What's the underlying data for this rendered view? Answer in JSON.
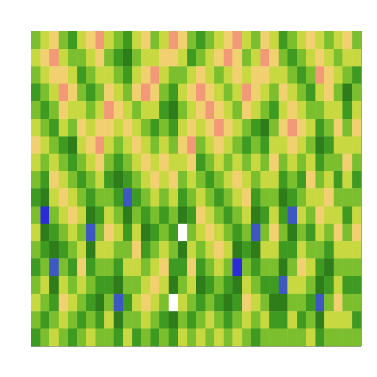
{
  "chart_data": {
    "type": "heatmap",
    "tick_labels": false,
    "grid": false,
    "cells": [
      [
        5,
        6,
        7,
        5,
        4,
        6,
        7,
        8,
        6,
        5,
        4,
        6,
        7,
        5,
        6,
        8,
        7,
        5,
        4,
        5,
        6,
        7,
        8,
        6,
        5,
        7,
        6,
        4,
        5,
        6,
        7,
        6,
        5,
        6,
        7,
        5
      ],
      [
        6,
        7,
        8,
        6,
        5,
        5,
        6,
        7,
        5,
        4,
        3,
        5,
        6,
        6,
        7,
        7,
        6,
        4,
        5,
        6,
        7,
        8,
        7,
        5,
        6,
        8,
        7,
        5,
        4,
        5,
        6,
        7,
        6,
        5,
        6,
        6
      ],
      [
        5,
        6,
        7,
        7,
        6,
        4,
        5,
        6,
        6,
        5,
        4,
        6,
        7,
        8,
        6,
        5,
        5,
        6,
        7,
        6,
        5,
        6,
        7,
        6,
        7,
        7,
        6,
        6,
        5,
        4,
        5,
        8,
        7,
        6,
        5,
        4
      ],
      [
        4,
        5,
        6,
        8,
        7,
        5,
        4,
        5,
        7,
        6,
        5,
        7,
        8,
        7,
        5,
        4,
        6,
        7,
        8,
        7,
        6,
        5,
        6,
        8,
        7,
        6,
        5,
        7,
        6,
        5,
        4,
        6,
        7,
        5,
        3,
        5
      ],
      [
        5,
        4,
        5,
        7,
        6,
        6,
        5,
        6,
        8,
        7,
        6,
        5,
        6,
        6,
        4,
        3,
        5,
        6,
        7,
        8,
        7,
        6,
        5,
        7,
        6,
        5,
        4,
        6,
        7,
        6,
        5,
        5,
        6,
        6,
        4,
        6
      ],
      [
        6,
        5,
        4,
        6,
        5,
        7,
        6,
        7,
        7,
        6,
        7,
        6,
        5,
        4,
        5,
        4,
        6,
        7,
        6,
        7,
        8,
        7,
        6,
        5,
        4,
        3,
        5,
        7,
        8,
        7,
        6,
        4,
        5,
        7,
        5,
        7
      ],
      [
        7,
        6,
        5,
        4,
        3,
        6,
        7,
        8,
        6,
        5,
        6,
        7,
        6,
        5,
        6,
        5,
        7,
        8,
        5,
        6,
        7,
        6,
        5,
        4,
        5,
        4,
        6,
        6,
        7,
        6,
        5,
        3,
        4,
        6,
        6,
        6
      ],
      [
        6,
        5,
        6,
        5,
        4,
        5,
        6,
        7,
        5,
        4,
        5,
        6,
        7,
        6,
        7,
        6,
        6,
        7,
        4,
        5,
        6,
        5,
        6,
        5,
        6,
        5,
        7,
        5,
        6,
        5,
        6,
        4,
        5,
        5,
        7,
        5
      ],
      [
        5,
        4,
        7,
        6,
        5,
        4,
        5,
        6,
        4,
        3,
        4,
        5,
        6,
        7,
        6,
        7,
        5,
        6,
        5,
        4,
        5,
        6,
        7,
        6,
        5,
        6,
        6,
        4,
        5,
        4,
        7,
        5,
        6,
        4,
        6,
        4
      ],
      [
        4,
        3,
        6,
        7,
        6,
        5,
        4,
        5,
        5,
        4,
        2,
        4,
        5,
        6,
        5,
        6,
        4,
        5,
        6,
        5,
        4,
        5,
        6,
        7,
        4,
        5,
        5,
        3,
        4,
        5,
        6,
        6,
        7,
        5,
        5,
        5
      ],
      [
        5,
        1,
        5,
        6,
        7,
        6,
        3,
        4,
        6,
        5,
        3,
        5,
        4,
        5,
        4,
        5,
        3,
        4,
        7,
        6,
        5,
        4,
        5,
        6,
        3,
        4,
        6,
        4,
        2,
        6,
        5,
        7,
        6,
        6,
        4,
        6
      ],
      [
        6,
        3,
        4,
        5,
        6,
        5,
        2,
        5,
        7,
        6,
        4,
        6,
        3,
        4,
        5,
        4,
        0,
        5,
        6,
        7,
        6,
        5,
        4,
        5,
        2,
        5,
        7,
        5,
        3,
        5,
        4,
        6,
        5,
        7,
        5,
        7
      ],
      [
        5,
        4,
        3,
        4,
        5,
        6,
        3,
        6,
        6,
        5,
        5,
        7,
        4,
        5,
        6,
        5,
        3,
        6,
        5,
        6,
        7,
        6,
        3,
        4,
        3,
        6,
        6,
        4,
        4,
        6,
        5,
        5,
        4,
        6,
        6,
        6
      ],
      [
        4,
        5,
        2,
        5,
        4,
        7,
        4,
        5,
        5,
        4,
        6,
        6,
        5,
        6,
        7,
        4,
        4,
        7,
        4,
        5,
        6,
        5,
        1,
        5,
        4,
        5,
        5,
        3,
        5,
        7,
        6,
        4,
        3,
        5,
        5,
        5
      ],
      [
        5,
        6,
        3,
        6,
        5,
        6,
        5,
        4,
        4,
        3,
        5,
        5,
        6,
        7,
        6,
        3,
        5,
        6,
        3,
        4,
        5,
        4,
        3,
        6,
        5,
        4,
        4,
        2,
        6,
        6,
        5,
        3,
        4,
        6,
        4,
        4
      ],
      [
        6,
        5,
        4,
        7,
        6,
        5,
        4,
        3,
        5,
        2,
        4,
        6,
        7,
        6,
        5,
        0,
        6,
        5,
        4,
        5,
        4,
        3,
        4,
        7,
        6,
        5,
        3,
        3,
        5,
        5,
        4,
        2,
        5,
        7,
        5,
        5
      ],
      [
        5,
        4,
        5,
        6,
        5,
        4,
        5,
        4,
        6,
        3,
        5,
        5,
        6,
        5,
        4,
        3,
        5,
        4,
        5,
        6,
        5,
        4,
        5,
        6,
        5,
        6,
        4,
        4,
        6,
        4,
        5,
        3,
        6,
        6,
        6,
        4
      ],
      [
        4,
        5,
        6,
        5,
        4,
        5,
        6,
        5,
        5,
        4,
        6,
        4,
        5,
        4,
        5,
        4,
        6,
        5,
        6,
        5,
        6,
        5,
        6,
        5,
        4,
        5,
        5,
        5,
        5,
        5,
        6,
        4,
        5,
        5,
        5,
        5
      ]
    ]
  }
}
